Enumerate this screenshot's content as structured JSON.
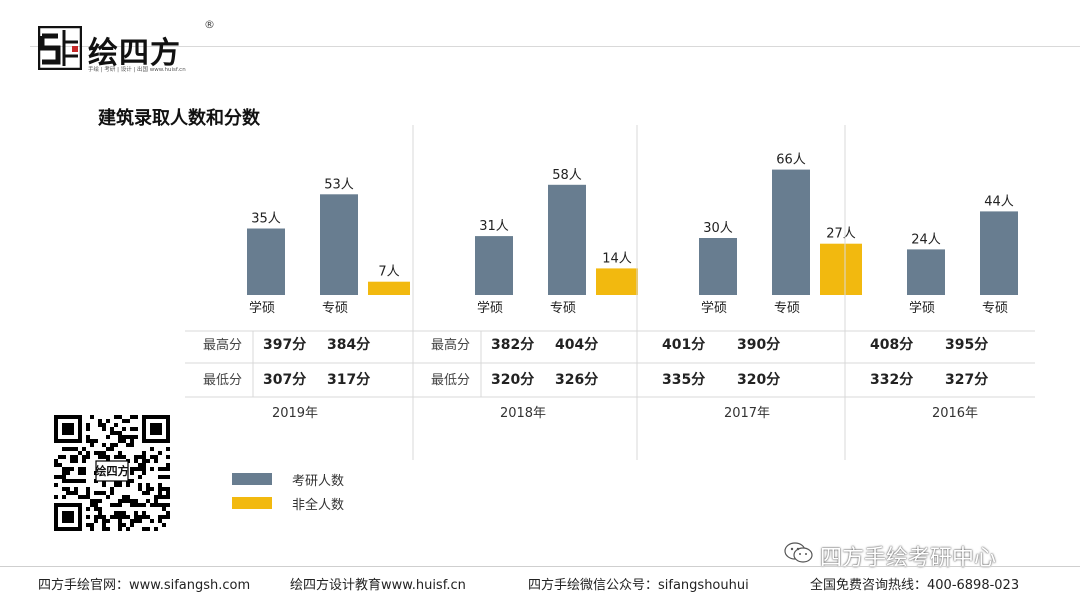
{
  "brand": {
    "name": "绘四方",
    "reg": "®",
    "tagline": "手绘 | 考研 | 设计 | 出国 www.huisf.cn",
    "qr_label": "绘四方"
  },
  "page_title": "建筑录取人数和分数",
  "colors": {
    "kaoyan": "#687d90",
    "feiquan": "#f2b90f",
    "grid": "#d9d9d9"
  },
  "chart_data": {
    "type": "bar",
    "title": "建筑录取人数和分数",
    "legend": [
      {
        "name": "考研人数",
        "color": "#687d90"
      },
      {
        "name": "非全人数",
        "color": "#f2b90f"
      }
    ],
    "row_labels": {
      "max": "最高分",
      "min": "最低分"
    },
    "groups": [
      {
        "year": "2019年",
        "bars": [
          {
            "category": "学硕",
            "kaoyan": 35,
            "kaoyan_label": "35人"
          },
          {
            "category": "专硕",
            "kaoyan": 53,
            "kaoyan_label": "53人",
            "feiquan": 7,
            "feiquan_label": "7人"
          }
        ],
        "max": [
          "397分",
          "384分"
        ],
        "min": [
          "307分",
          "317分"
        ]
      },
      {
        "year": "2018年",
        "bars": [
          {
            "category": "学硕",
            "kaoyan": 31,
            "kaoyan_label": "31人"
          },
          {
            "category": "专硕",
            "kaoyan": 58,
            "kaoyan_label": "58人",
            "feiquan": 14,
            "feiquan_label": "14人"
          }
        ],
        "max": [
          "382分",
          "404分"
        ],
        "min": [
          "320分",
          "326分"
        ]
      },
      {
        "year": "2017年",
        "bars": [
          {
            "category": "学硕",
            "kaoyan": 30,
            "kaoyan_label": "30人"
          },
          {
            "category": "专硕",
            "kaoyan": 66,
            "kaoyan_label": "66人",
            "feiquan": 27,
            "feiquan_label": "27人"
          }
        ],
        "max": [
          "401分",
          "390分"
        ],
        "min": [
          "335分",
          "320分"
        ]
      },
      {
        "year": "2016年",
        "bars": [
          {
            "category": "学硕",
            "kaoyan": 24,
            "kaoyan_label": "24人"
          },
          {
            "category": "专硕",
            "kaoyan": 44,
            "kaoyan_label": "44人"
          }
        ],
        "max": [
          "408分",
          "395分"
        ],
        "min": [
          "332分",
          "327分"
        ]
      }
    ]
  },
  "watermark": "四方手绘考研中心",
  "footer": {
    "site": "四方手绘官网：www.sifangsh.com",
    "edu": "绘四方设计教育www.huisf.cn",
    "wechat": "四方手绘微信公众号：sifangshouhui",
    "hotline": "全国免费咨询热线：400-6898-023"
  }
}
